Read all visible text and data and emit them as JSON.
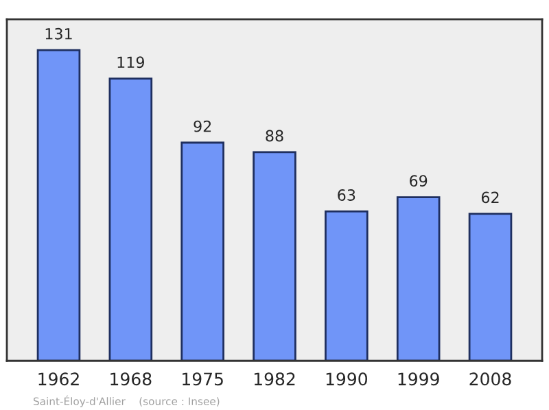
{
  "chart_data": {
    "type": "bar",
    "categories": [
      "1962",
      "1968",
      "1975",
      "1982",
      "1990",
      "1999",
      "2008"
    ],
    "values": [
      131,
      119,
      92,
      88,
      63,
      69,
      62
    ],
    "color": "#7095f8",
    "data_labels": true,
    "ylim": [
      0,
      144
    ],
    "grid": false,
    "legend": false,
    "annotations": [
      "Saint-Éloy-d'Allier    (source : Insee)"
    ]
  }
}
